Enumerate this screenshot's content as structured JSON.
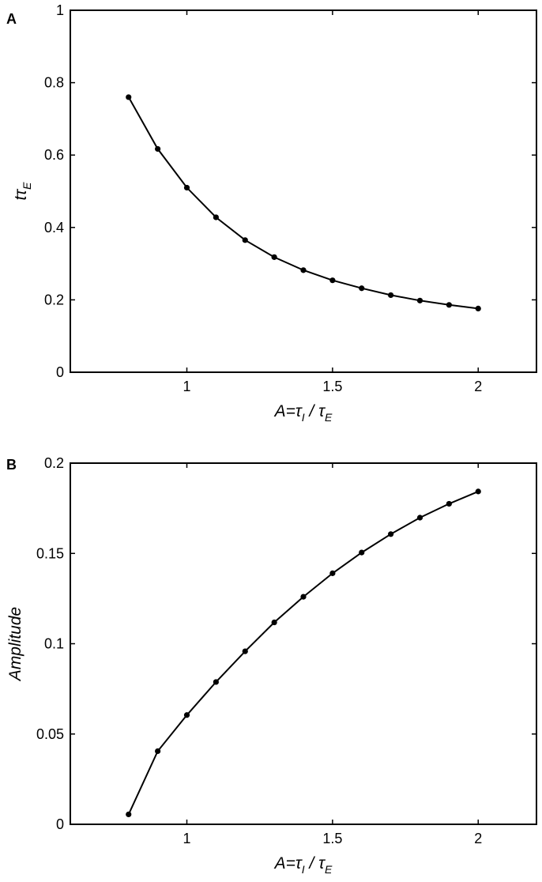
{
  "chart_data": [
    {
      "panel": "A",
      "type": "line",
      "x": [
        0.8,
        0.9,
        1.0,
        1.1,
        1.2,
        1.3,
        1.4,
        1.5,
        1.6,
        1.7,
        1.8,
        1.9,
        2.0
      ],
      "series": [
        {
          "values": [
            0.76,
            0.617,
            0.51,
            0.428,
            0.365,
            0.318,
            0.282,
            0.254,
            0.232,
            0.213,
            0.198,
            0.186,
            0.176
          ]
        }
      ],
      "xlabel": {
        "main": "A=τ",
        "sub1": "I",
        "mid": " / τ",
        "sub2": "E"
      },
      "ylabel": {
        "main": "tτ",
        "sub": "E"
      },
      "xlim": [
        0.6,
        2.2
      ],
      "ylim": [
        0,
        1
      ],
      "xticks": [
        1,
        1.5,
        2
      ],
      "xtick_labels": [
        "1",
        "1.5",
        "2"
      ],
      "yticks": [
        0,
        0.2,
        0.4,
        0.6,
        0.8,
        1
      ],
      "ytick_labels": [
        "0",
        "0.2",
        "0.4",
        "0.6",
        "0.8",
        "1"
      ],
      "grid": false,
      "color": "#000000"
    },
    {
      "panel": "B",
      "type": "line",
      "x": [
        0.8,
        0.9,
        1.0,
        1.1,
        1.2,
        1.3,
        1.4,
        1.5,
        1.6,
        1.7,
        1.8,
        1.9,
        2.0
      ],
      "series": [
        {
          "values": [
            0.0055,
            0.0405,
            0.0605,
            0.0788,
            0.0958,
            0.1118,
            0.126,
            0.139,
            0.1505,
            0.1607,
            0.1698,
            0.1775,
            0.1843
          ]
        }
      ],
      "xlabel": {
        "main": "A=τ",
        "sub1": "I",
        "mid": " / τ",
        "sub2": "E"
      },
      "ylabel": {
        "main": "Amplitude",
        "sub": ""
      },
      "xlim": [
        0.6,
        2.2
      ],
      "ylim": [
        0,
        0.2
      ],
      "xticks": [
        1,
        1.5,
        2
      ],
      "xtick_labels": [
        "1",
        "1.5",
        "2"
      ],
      "yticks": [
        0,
        0.05,
        0.1,
        0.15,
        0.2
      ],
      "ytick_labels": [
        "0",
        "0.05",
        "0.1",
        "0.15",
        "0.2"
      ],
      "grid": false,
      "color": "#000000"
    }
  ]
}
